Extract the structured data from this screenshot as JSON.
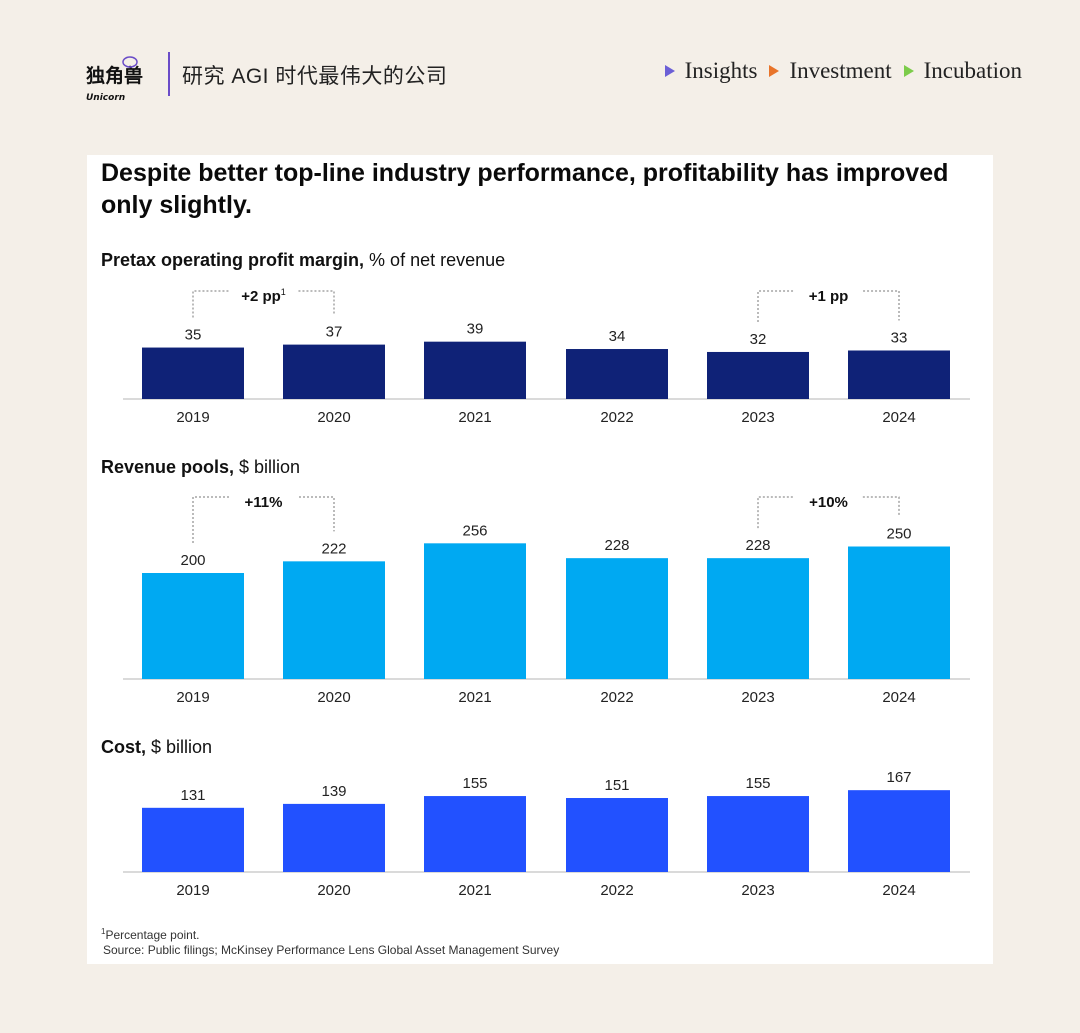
{
  "header": {
    "logo_text": "独角兽",
    "logo_sub": "Unicorn",
    "tagline": "研究 AGI 时代最伟大的公司",
    "nav": [
      {
        "label": "Insights",
        "color": "#6b5fd6"
      },
      {
        "label": "Investment",
        "color": "#e8742a"
      },
      {
        "label": "Incubation",
        "color": "#7ccc4a"
      }
    ]
  },
  "title": "Despite better top-line industry performance, profitability has improved only slightly.",
  "footnote": {
    "marker": "1",
    "note": "Percentage point.",
    "source": "Source: Public filings; McKinsey Performance Lens Global Asset Management Survey"
  },
  "chart_data": [
    {
      "type": "bar",
      "label_bold": "Pretax operating profit margin,",
      "label_rest": " % of net revenue",
      "categories": [
        "2019",
        "2020",
        "2021",
        "2022",
        "2023",
        "2024"
      ],
      "values": [
        35,
        37,
        39,
        34,
        32,
        33
      ],
      "color": "#0f2277",
      "annotations": [
        {
          "from": "2019",
          "to": "2020",
          "text": "+2 pp",
          "sup": "1"
        },
        {
          "from": "2023",
          "to": "2024",
          "text": "+1 pp",
          "sup": ""
        }
      ]
    },
    {
      "type": "bar",
      "label_bold": "Revenue pools,",
      "label_rest": " $ billion",
      "categories": [
        "2019",
        "2020",
        "2021",
        "2022",
        "2023",
        "2024"
      ],
      "values": [
        200,
        222,
        256,
        228,
        228,
        250
      ],
      "color": "#00a9f2",
      "annotations": [
        {
          "from": "2019",
          "to": "2020",
          "text": "+11%",
          "sup": ""
        },
        {
          "from": "2023",
          "to": "2024",
          "text": "+10%",
          "sup": ""
        }
      ]
    },
    {
      "type": "bar",
      "label_bold": "Cost,",
      "label_rest": " $ billion",
      "categories": [
        "2019",
        "2020",
        "2021",
        "2022",
        "2023",
        "2024"
      ],
      "values": [
        131,
        139,
        155,
        151,
        155,
        167
      ],
      "color": "#2251ff",
      "annotations": []
    }
  ]
}
